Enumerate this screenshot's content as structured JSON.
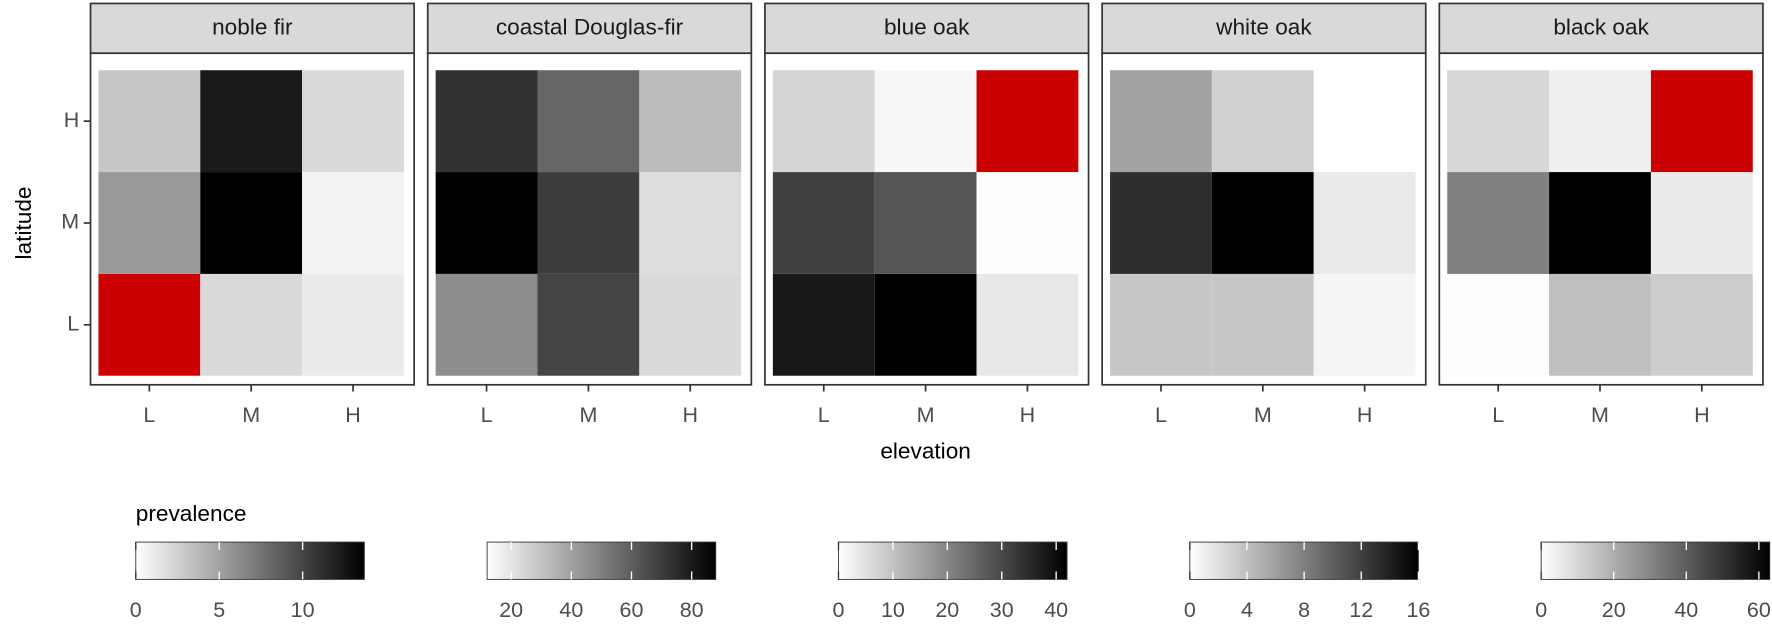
{
  "chart_data": {
    "type": "heatmap",
    "xlabel": "elevation",
    "ylabel": "latitude",
    "legend_title": "prevalence",
    "x_categories": [
      "L",
      "M",
      "H"
    ],
    "y_categories": [
      "L",
      "M",
      "H"
    ],
    "low_color": "#ffffff",
    "high_color": "#000000",
    "na_color": "#cc0000",
    "panels": [
      {
        "title": "noble fir",
        "values": [
          [
            null,
            2.0,
            1.1
          ],
          [
            5.5,
            13.7,
            0.7
          ],
          [
            3.0,
            12.3,
            2.0
          ]
        ],
        "clim": [
          0,
          13.7
        ],
        "cticks": [
          0,
          5,
          10
        ]
      },
      {
        "title": "coastal Douglas-fir",
        "values": [
          [
            46,
            67.6,
            23
          ],
          [
            88,
            70,
            22
          ],
          [
            73,
            57.6,
            32
          ]
        ],
        "clim": [
          12,
          88
        ],
        "cticks": [
          20,
          40,
          60,
          80
        ]
      },
      {
        "title": "blue oak",
        "values": [
          [
            38,
            42,
            3.8
          ],
          [
            31.5,
            28,
            0.3
          ],
          [
            7,
            1.3,
            null
          ]
        ],
        "clim": [
          0,
          42
        ],
        "cticks": [
          0,
          10,
          20,
          30,
          40
        ]
      },
      {
        "title": "white oak",
        "values": [
          [
            3.5,
            3.5,
            0.6
          ],
          [
            13.1,
            16,
            1.3
          ],
          [
            5.8,
            2.9,
            0
          ]
        ],
        "clim": [
          0,
          16
        ],
        "cticks": [
          0,
          4,
          8,
          12,
          16
        ]
      },
      {
        "title": "black oak",
        "values": [
          [
            0.6,
            15.8,
            12.6
          ],
          [
            31.5,
            63,
            5
          ],
          [
            10,
            4,
            null
          ]
        ],
        "clim": [
          0,
          63
        ],
        "cticks": [
          0,
          20,
          40,
          60
        ]
      }
    ]
  }
}
